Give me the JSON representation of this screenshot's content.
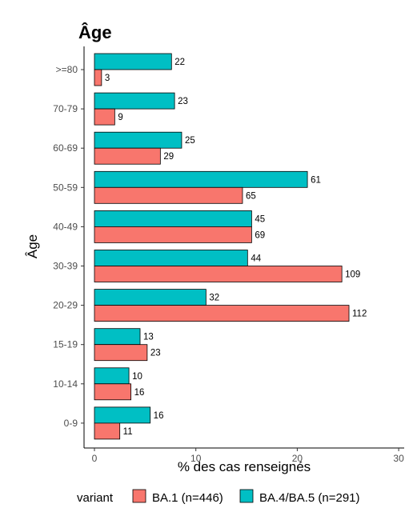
{
  "chart_data": {
    "type": "bar",
    "orientation": "horizontal",
    "title": "Âge",
    "xlabel": "% des cas renseignés",
    "ylabel": "Âge",
    "categories": [
      "0-9",
      "10-14",
      "15-19",
      "20-29",
      "30-39",
      "40-49",
      "50-59",
      "60-69",
      "70-79",
      ">=80"
    ],
    "xlim": [
      0,
      30
    ],
    "xticks": [
      0,
      10,
      20,
      30
    ],
    "grid": false,
    "legend_title": "variant",
    "legend_position": "bottom",
    "series": [
      {
        "name": "BA.1 (n=446)",
        "color": "#F8766D",
        "values": [
          2.5,
          3.6,
          5.2,
          25.1,
          24.4,
          15.5,
          14.6,
          6.5,
          2.0,
          0.7
        ],
        "labels": [
          "11",
          "16",
          "23",
          "112",
          "109",
          "69",
          "65",
          "29",
          "9",
          "3"
        ]
      },
      {
        "name": "BA.4/BA.5 (n=291)",
        "color": "#00BFC4",
        "values": [
          5.5,
          3.4,
          4.5,
          11.0,
          15.1,
          15.5,
          21.0,
          8.6,
          7.9,
          7.6
        ],
        "labels": [
          "16",
          "10",
          "13",
          "32",
          "44",
          "45",
          "61",
          "25",
          "23",
          "22"
        ]
      }
    ]
  }
}
